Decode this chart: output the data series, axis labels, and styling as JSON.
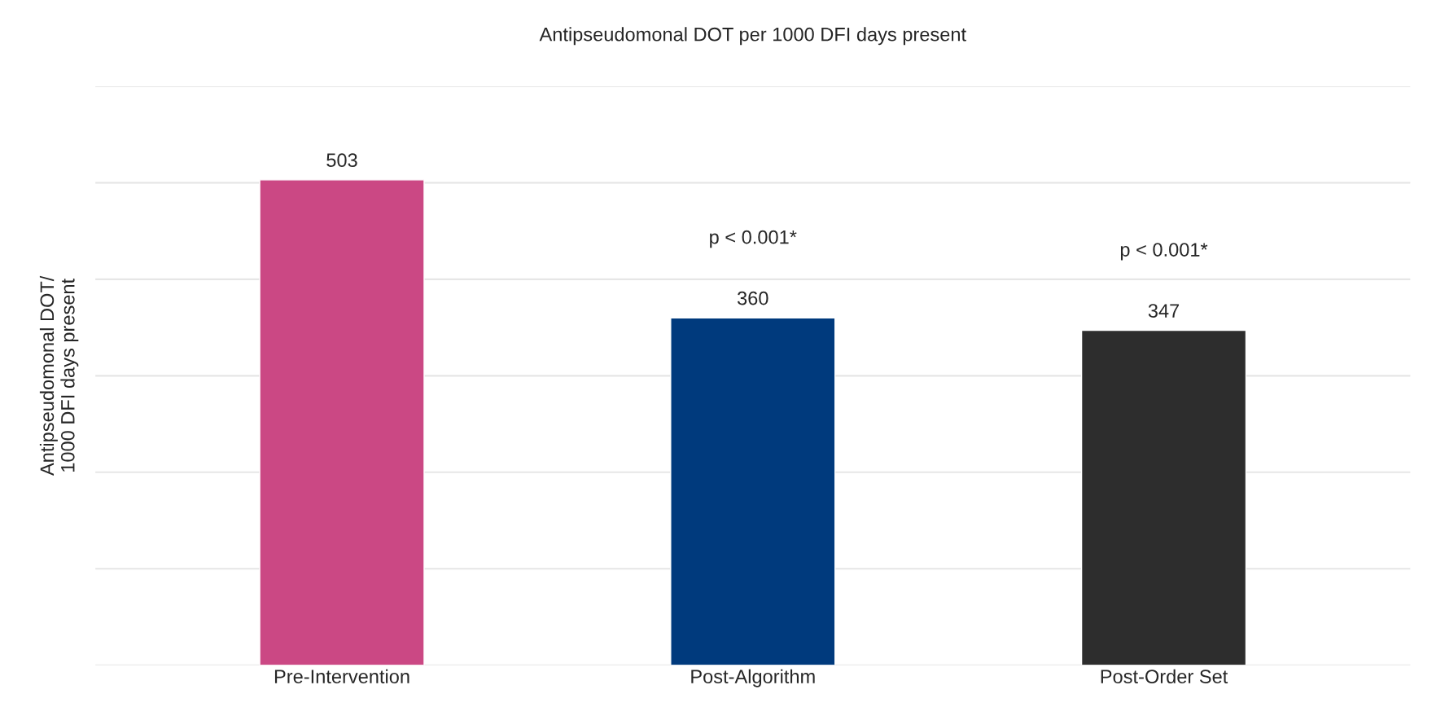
{
  "chart_data": {
    "type": "bar",
    "title": "Antipseudomonal DOT per 1000 DFI days present",
    "ylabel": "Antipseudomonal DOT/\n1000 DFI days present",
    "categories": [
      "Pre-Intervention",
      "Post-Algorithm",
      "Post-Order Set"
    ],
    "values": [
      503,
      360,
      347
    ],
    "colors": [
      "#cb4884",
      "#003a7d",
      "#2d2d2d"
    ],
    "data_labels": true,
    "ylim": [
      0,
      600
    ],
    "yticks": [
      {
        "value": 0,
        "label": null
      },
      {
        "value": 100,
        "label": null
      },
      {
        "value": 200,
        "label": null
      },
      {
        "value": 300,
        "label": null
      },
      {
        "value": 400,
        "label": null
      },
      {
        "value": 500,
        "label": null
      },
      {
        "value": 600,
        "label": null
      }
    ],
    "tick_labels": "x",
    "grid": "y",
    "annotations": [
      "p < 0.001*",
      "p < 0.001*"
    ]
  }
}
